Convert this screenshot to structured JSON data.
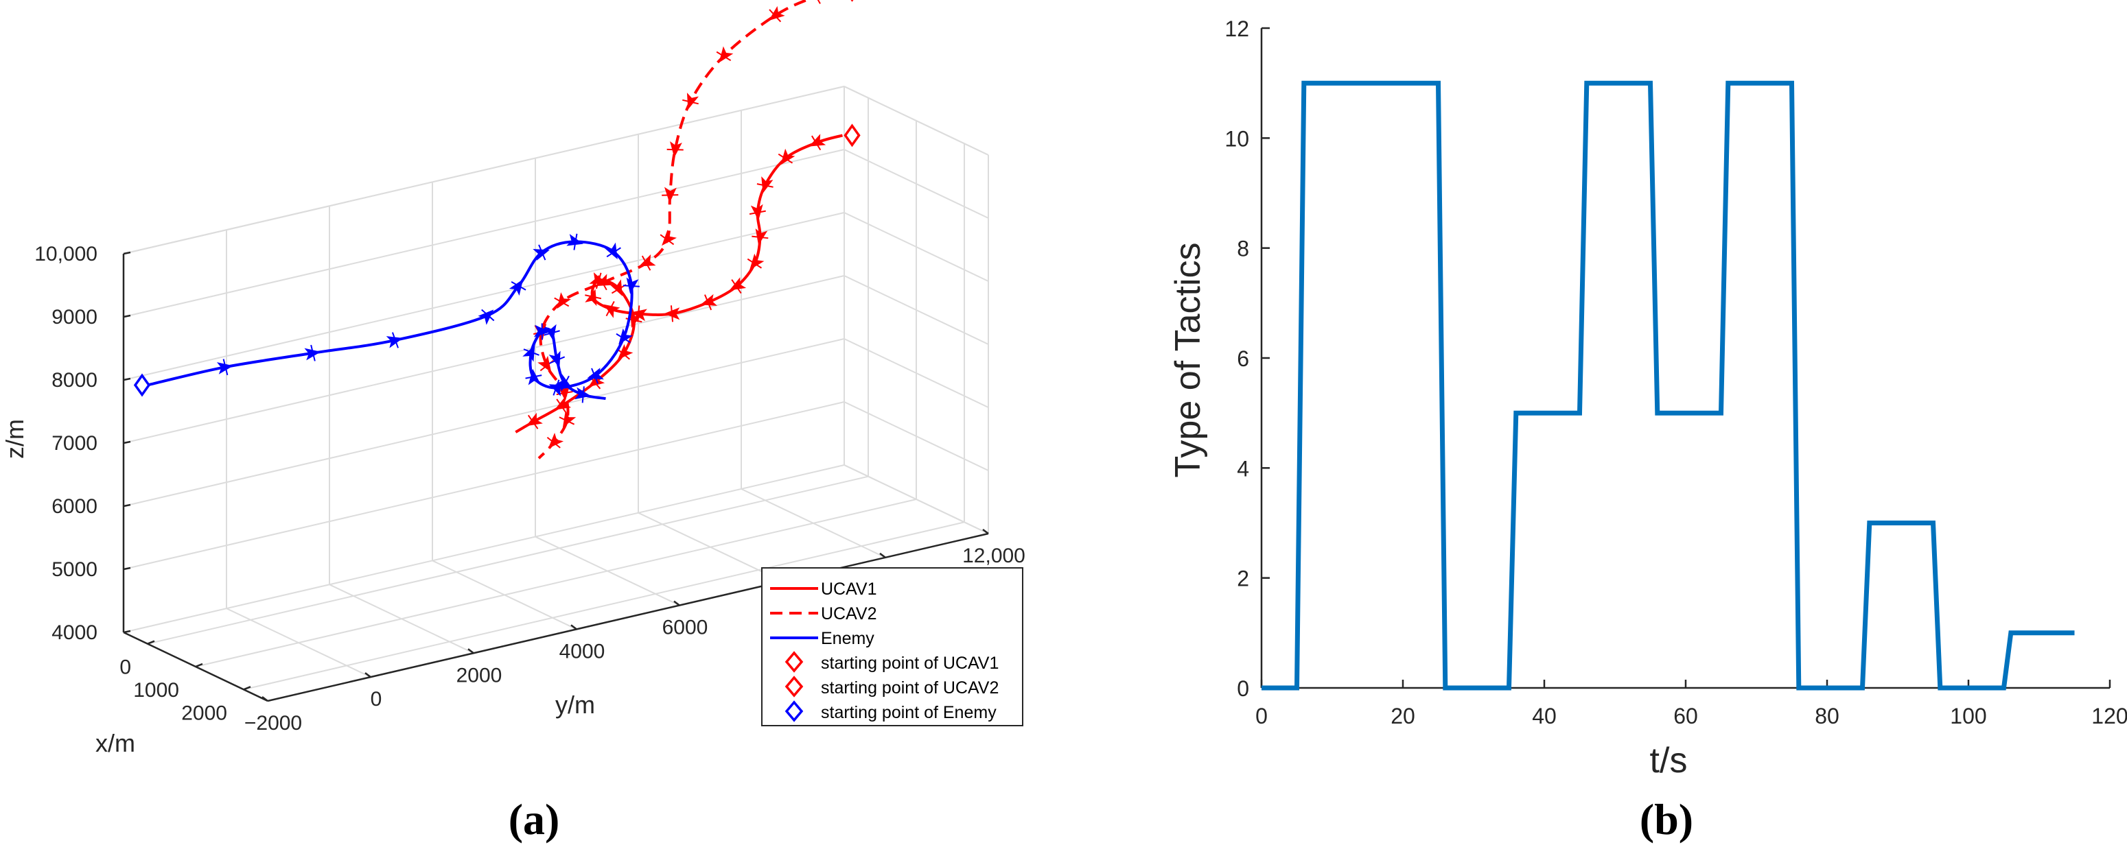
{
  "chart_data": [
    {
      "panel": "(a)",
      "type": "line3d",
      "xlabel": "x/m",
      "ylabel": "y/m",
      "zlabel": "z/m",
      "x_ticks": [
        "0",
        "1000",
        "2000"
      ],
      "y_ticks": [
        "−2000",
        "0",
        "2000",
        "4000",
        "6000",
        "8000",
        "10,000",
        "12,000"
      ],
      "z_ticks": [
        "4000",
        "5000",
        "6000",
        "7000",
        "8000",
        "9000",
        "10,000"
      ],
      "xlim": [
        -500,
        2500
      ],
      "ylim": [
        -2000,
        12000
      ],
      "zlim": [
        4000,
        10000
      ],
      "grid": true,
      "legend_placement": "bottom-right",
      "legend": [
        {
          "label": "UCAV1",
          "style": "solid-line",
          "color": "#ff0000"
        },
        {
          "label": "UCAV2",
          "style": "dashed-line",
          "color": "#ff0000"
        },
        {
          "label": "Enemy",
          "style": "solid-line",
          "color": "#0000ff"
        },
        {
          "label": "starting point of UCAV1",
          "style": "diamond",
          "color": "#ff0000"
        },
        {
          "label": "starting point of UCAV2",
          "style": "diamond",
          "color": "#ff0000"
        },
        {
          "label": "starting point of Enemy",
          "style": "diamond",
          "color": "#0000ff"
        }
      ],
      "series": [
        {
          "name": "UCAV1",
          "color": "#ff0000",
          "dash": false,
          "points": [
            [
              0,
              11500,
              9500
            ],
            [
              0,
              11000,
              9480
            ],
            [
              0,
              10400,
              9350
            ],
            [
              0,
              10000,
              9000
            ],
            [
              0,
              9850,
              8600
            ],
            [
              0,
              9900,
              8200
            ],
            [
              0,
              9800,
              7800
            ],
            [
              0,
              9450,
              7500
            ],
            [
              0,
              8900,
              7350
            ],
            [
              0,
              8200,
              7300
            ],
            [
              0,
              7550,
              7420
            ],
            [
              0,
              7000,
              7600
            ],
            [
              0,
              6650,
              7850
            ],
            [
              0,
              6750,
              8100
            ],
            [
              0,
              7150,
              7900
            ],
            [
              0,
              7450,
              7350
            ],
            [
              0,
              7250,
              6850
            ],
            [
              0,
              6700,
              6500
            ],
            [
              0,
              6050,
              6250
            ],
            [
              0,
              5500,
              6100
            ],
            [
              0,
              5150,
              6000
            ]
          ]
        },
        {
          "name": "UCAV2",
          "color": "#ff0000",
          "dash": true,
          "points": [
            [
              0,
              11500,
              11800
            ],
            [
              0,
              11000,
              11800
            ],
            [
              0,
              10200,
              11650
            ],
            [
              0,
              9200,
              11200
            ],
            [
              0,
              8550,
              10600
            ],
            [
              0,
              8250,
              9900
            ],
            [
              0,
              8150,
              9200
            ],
            [
              0,
              8100,
              8500
            ],
            [
              0,
              7700,
              8200
            ],
            [
              0,
              6850,
              8050
            ],
            [
              0,
              6050,
              7900
            ],
            [
              0,
              5650,
              7500
            ],
            [
              0,
              5750,
              6950
            ],
            [
              0,
              6100,
              6450
            ],
            [
              0,
              6150,
              6000
            ],
            [
              0,
              5900,
              5700
            ],
            [
              0,
              5600,
              5500
            ]
          ]
        },
        {
          "name": "Enemy",
          "color": "#0000ff",
          "dash": false,
          "points": [
            [
              0,
              -2000,
              8100
            ],
            [
              0,
              -500,
              8100
            ],
            [
              0,
              1200,
              8000
            ],
            [
              0,
              2800,
              7900
            ],
            [
              0,
              4600,
              7950
            ],
            [
              0,
              5200,
              8300
            ],
            [
              0,
              5650,
              8750
            ],
            [
              0,
              6300,
              8800
            ],
            [
              0,
              7050,
              8500
            ],
            [
              0,
              7400,
              7900
            ],
            [
              0,
              7250,
              7100
            ],
            [
              0,
              6700,
              6600
            ],
            [
              0,
              5950,
              6550
            ],
            [
              0,
              5500,
              6800
            ],
            [
              0,
              5450,
              7200
            ],
            [
              0,
              5650,
              7500
            ],
            [
              0,
              5850,
              7450
            ],
            [
              0,
              5950,
              7000
            ],
            [
              0,
              6100,
              6600
            ],
            [
              0,
              6450,
              6350
            ],
            [
              0,
              6900,
              6200
            ]
          ]
        }
      ],
      "start_points": [
        {
          "name": "starting point of UCAV1",
          "color": "#ff0000",
          "point": [
            0,
            11500,
            9500
          ]
        },
        {
          "name": "starting point of UCAV2",
          "color": "#ff0000",
          "point": [
            0,
            11500,
            11800
          ]
        },
        {
          "name": "starting point of Enemy",
          "color": "#0000ff",
          "point": [
            0,
            -2000,
            8100
          ]
        }
      ]
    },
    {
      "panel": "(b)",
      "type": "line",
      "xlabel": "t/s",
      "ylabel": "Type of Tactics",
      "xlim": [
        0,
        120
      ],
      "ylim": [
        0,
        12
      ],
      "x_ticks": [
        0,
        20,
        40,
        60,
        80,
        100,
        120
      ],
      "y_ticks": [
        0,
        2,
        4,
        6,
        8,
        10,
        12
      ],
      "grid": false,
      "series": [
        {
          "name": "tactics",
          "color": "#0072bd",
          "x": [
            0,
            5,
            6,
            25,
            26,
            35,
            36,
            45,
            46,
            55,
            56,
            65,
            66,
            75,
            76,
            85,
            86,
            95,
            96,
            105,
            106,
            115
          ],
          "y": [
            0,
            0,
            11,
            11,
            0,
            0,
            5,
            5,
            11,
            11,
            5,
            5,
            11,
            11,
            0,
            0,
            3,
            3,
            0,
            0,
            1,
            1
          ]
        }
      ]
    }
  ],
  "labels": {
    "panel_a": "(a)",
    "panel_b": "(b)"
  }
}
